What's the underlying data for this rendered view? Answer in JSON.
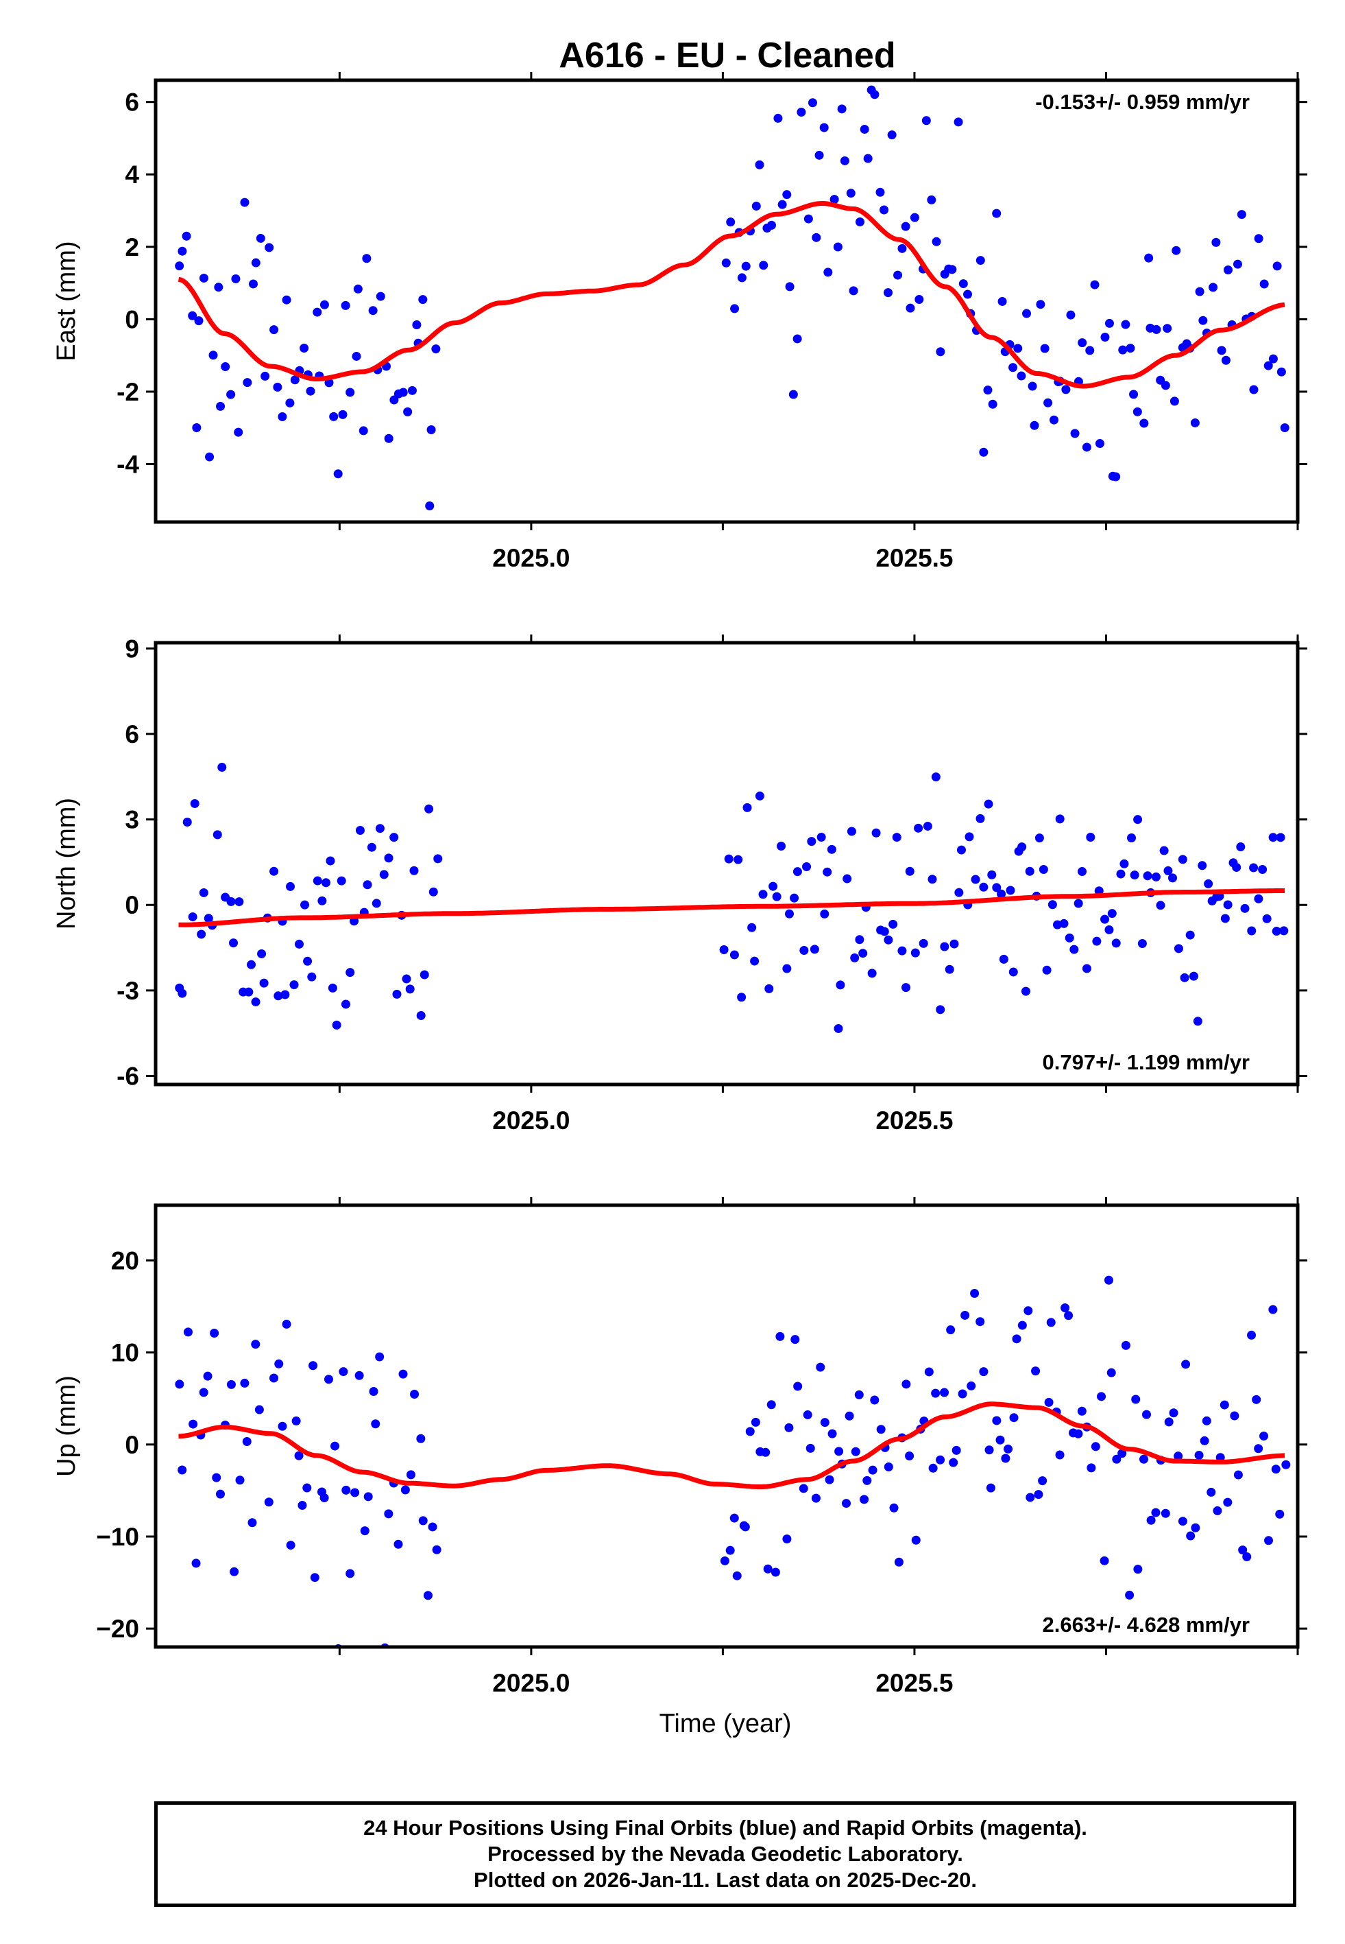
{
  "title": "A616  - EU - Cleaned",
  "x_axis_label": "Time (year)",
  "footer_lines": [
    "24 Hour Positions Using Final Orbits (blue) and Rapid Orbits (magenta).",
    "Processed by the Nevada Geodetic Laboratory.",
    "Plotted on 2026-Jan-11. Last data on 2025-Dec-20."
  ],
  "colors": {
    "points": "#0000ff",
    "fit": "#ff0000",
    "axes": "#000000"
  },
  "chart_data": [
    {
      "type": "scatter",
      "name": "east",
      "ylabel": "East (mm)",
      "rate_label": "-0.153+/- 0.959 mm/yr",
      "xlim": [
        2024.51,
        2026.0
      ],
      "ylim": [
        -5.6,
        6.6
      ],
      "x_ticks": [
        2025.0,
        2025.5
      ],
      "x_tick_labels": [
        "2025.0",
        "2025.5"
      ],
      "y_ticks": [
        -4,
        -2,
        0,
        2,
        4,
        6
      ],
      "y_tick_labels": [
        "-4",
        "-2",
        "0",
        "2",
        "4",
        "6"
      ],
      "data_gap": [
        2024.88,
        2025.25
      ],
      "points_per_mm_spread": 1.7,
      "fit_curve": {
        "x": [
          2024.54,
          2024.6,
          2024.66,
          2024.72,
          2024.78,
          2024.84,
          2024.9,
          2024.96,
          2025.02,
          2025.08,
          2025.14,
          2025.2,
          2025.26,
          2025.32,
          2025.38,
          2025.42,
          2025.48,
          2025.54,
          2025.6,
          2025.66,
          2025.72,
          2025.78,
          2025.84,
          2025.9,
          2025.985
        ],
        "y": [
          1.1,
          -0.4,
          -1.3,
          -1.65,
          -1.45,
          -0.85,
          -0.1,
          0.45,
          0.7,
          0.78,
          0.95,
          1.5,
          2.3,
          2.9,
          3.2,
          3.05,
          2.2,
          0.9,
          -0.5,
          -1.5,
          -1.85,
          -1.6,
          -1.0,
          -0.3,
          0.4
        ]
      }
    },
    {
      "type": "scatter",
      "name": "north",
      "ylabel": "North (mm)",
      "rate_label": "0.797+/- 1.199 mm/yr",
      "xlim": [
        2024.51,
        2026.0
      ],
      "ylim": [
        -6.3,
        9.2
      ],
      "x_ticks": [
        2025.0,
        2025.5
      ],
      "x_tick_labels": [
        "2025.0",
        "2025.5"
      ],
      "y_ticks": [
        -6,
        -3,
        0,
        3,
        6,
        9
      ],
      "y_tick_labels": [
        "-6",
        "-3",
        "0",
        "3",
        "6",
        "9"
      ],
      "data_gap": [
        2024.88,
        2025.25
      ],
      "points_per_mm_spread": 1.9,
      "fit_curve": {
        "x": [
          2024.54,
          2024.7,
          2024.9,
          2025.1,
          2025.3,
          2025.5,
          2025.7,
          2025.85,
          2025.985
        ],
        "y": [
          -0.7,
          -0.45,
          -0.3,
          -0.15,
          -0.05,
          0.05,
          0.3,
          0.45,
          0.5
        ]
      }
    },
    {
      "type": "scatter",
      "name": "up",
      "ylabel": "Up (mm)",
      "rate_label": "2.663+/- 4.628 mm/yr",
      "xlim": [
        2024.51,
        2026.0
      ],
      "ylim": [
        -22,
        26
      ],
      "x_ticks": [
        2025.0,
        2025.5
      ],
      "x_tick_labels": [
        "2025.0",
        "2025.5"
      ],
      "y_ticks": [
        -20,
        -10,
        0,
        10,
        20
      ],
      "y_tick_labels": [
        "−20",
        "−10",
        "0",
        "10",
        "20"
      ],
      "data_gap": [
        2024.88,
        2025.25
      ],
      "points_per_mm_spread": 7.0,
      "fit_curve": {
        "x": [
          2024.54,
          2024.6,
          2024.66,
          2024.72,
          2024.78,
          2024.84,
          2024.9,
          2024.96,
          2025.02,
          2025.1,
          2025.18,
          2025.24,
          2025.3,
          2025.36,
          2025.42,
          2025.48,
          2025.54,
          2025.6,
          2025.66,
          2025.72,
          2025.78,
          2025.84,
          2025.9,
          2025.985
        ],
        "y": [
          0.9,
          1.9,
          1.2,
          -1.2,
          -3.0,
          -4.2,
          -4.5,
          -3.8,
          -2.8,
          -2.3,
          -3.2,
          -4.3,
          -4.6,
          -3.8,
          -1.8,
          0.6,
          3.0,
          4.4,
          4.0,
          2.0,
          -0.5,
          -1.8,
          -1.9,
          -1.2
        ]
      }
    }
  ]
}
